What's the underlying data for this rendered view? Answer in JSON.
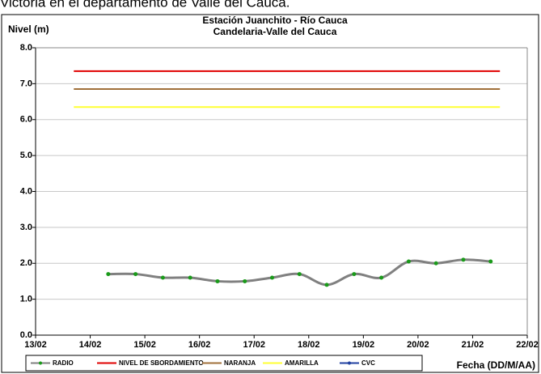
{
  "header": "Victoria en el departamento de Valle del Cauca.",
  "chart_data": {
    "type": "line",
    "title": "Estación Juanchito - Río Cauca",
    "subtitle": "Candelaria-Valle del Cauca",
    "y_label": "Nivel (m)",
    "x_label": "Fecha (DD/M/AA)",
    "xlim": [
      13,
      22
    ],
    "xticks": [
      {
        "value": 13,
        "label": "13/02"
      },
      {
        "value": 14,
        "label": "14/02"
      },
      {
        "value": 15,
        "label": "15/02"
      },
      {
        "value": 16,
        "label": "16/02"
      },
      {
        "value": 17,
        "label": "17/02"
      },
      {
        "value": 18,
        "label": "18/02"
      },
      {
        "value": 19,
        "label": "19/02"
      },
      {
        "value": 20,
        "label": "20/02"
      },
      {
        "value": 21,
        "label": "21/02"
      },
      {
        "value": 22,
        "label": "22/02"
      }
    ],
    "ylim": [
      0,
      8
    ],
    "yticks": [
      {
        "value": 0,
        "label": "0.0"
      },
      {
        "value": 1,
        "label": "1.0"
      },
      {
        "value": 2,
        "label": "2.0"
      },
      {
        "value": 3,
        "label": "3.0"
      },
      {
        "value": 4,
        "label": "4.0"
      },
      {
        "value": 5,
        "label": "5.0"
      },
      {
        "value": 6,
        "label": "6.0"
      },
      {
        "value": 7,
        "label": "7.0"
      },
      {
        "value": 8,
        "label": "8.0"
      }
    ],
    "grid": true,
    "series": [
      {
        "name": "RADIO",
        "color": "#808080",
        "marker_color": "#1a9a1a",
        "x": [
          14.33,
          14.83,
          15.33,
          15.83,
          16.33,
          16.83,
          17.33,
          17.83,
          18.33,
          18.83,
          19.33,
          19.83,
          20.33,
          20.83,
          21.33
        ],
        "values": [
          1.7,
          1.7,
          1.6,
          1.6,
          1.5,
          1.5,
          1.6,
          1.7,
          1.4,
          1.7,
          1.6,
          2.05,
          2.0,
          2.1,
          2.05
        ]
      },
      {
        "name": "NIVEL DE SBORDAMIENTO",
        "color": "#e00000",
        "x": [
          13.7,
          21.5
        ],
        "values": [
          7.35,
          7.35
        ]
      },
      {
        "name": "NARANJA",
        "color": "#a0703a",
        "x": [
          13.7,
          21.5
        ],
        "values": [
          6.85,
          6.85
        ]
      },
      {
        "name": "AMARILLA",
        "color": "#ffff33",
        "x": [
          13.7,
          21.5
        ],
        "values": [
          6.35,
          6.35
        ]
      },
      {
        "name": "CVC",
        "color": "#2040a0",
        "x": [],
        "values": []
      }
    ]
  }
}
